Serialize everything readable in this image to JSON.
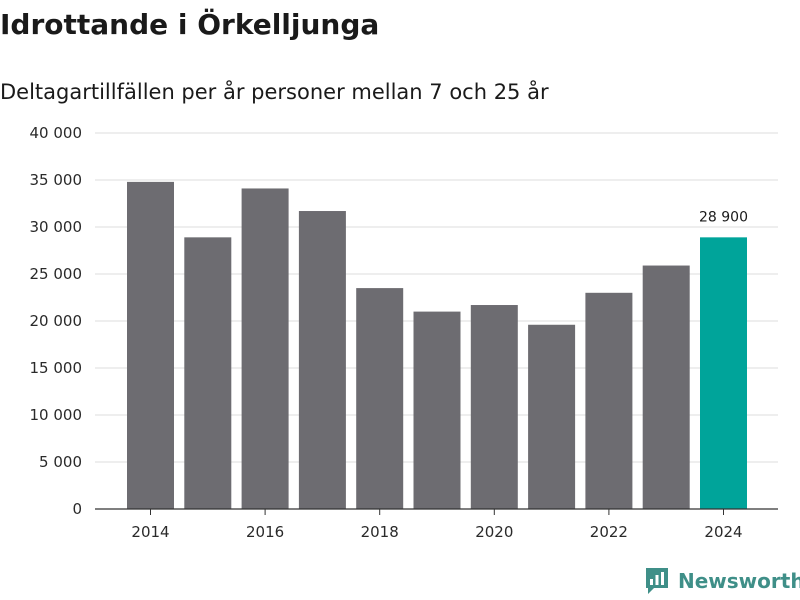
{
  "title": "Idrottande i Örkelljunga",
  "subtitle": "Deltagartillfällen per år personer mellan 7 och 25 år",
  "brand": {
    "name": "Newsworthy",
    "icon": "newsworthy-logo-icon"
  },
  "colors": {
    "bar": "#6d6c71",
    "highlight": "#00a49a",
    "grid": "#dcdcdc",
    "axis": "#333333"
  },
  "chart_data": {
    "type": "bar",
    "title": "Idrottande i Örkelljunga",
    "subtitle": "Deltagartillfällen per år personer mellan 7 och 25 år",
    "xlabel": "",
    "ylabel": "",
    "categories": [
      "2014",
      "2015",
      "2016",
      "2017",
      "2018",
      "2019",
      "2020",
      "2021",
      "2022",
      "2023",
      "2024"
    ],
    "values": [
      34800,
      28900,
      34100,
      31700,
      23500,
      21000,
      21700,
      19600,
      23000,
      25900,
      28900
    ],
    "highlight_index": 10,
    "data_labels": [
      {
        "index": 10,
        "text": "28 900"
      }
    ],
    "x_tick_labels": [
      "2014",
      "2016",
      "2018",
      "2020",
      "2022",
      "2024"
    ],
    "x_tick_indices": [
      0,
      2,
      4,
      6,
      8,
      10
    ],
    "y_ticks": [
      0,
      5000,
      10000,
      15000,
      20000,
      25000,
      30000,
      35000,
      40000
    ],
    "y_tick_labels": [
      "0",
      "5 000",
      "10 000",
      "15 000",
      "20 000",
      "25 000",
      "30 000",
      "35 000",
      "40 000"
    ],
    "ylim": [
      0,
      40000
    ],
    "grid": true,
    "legend": "none"
  }
}
